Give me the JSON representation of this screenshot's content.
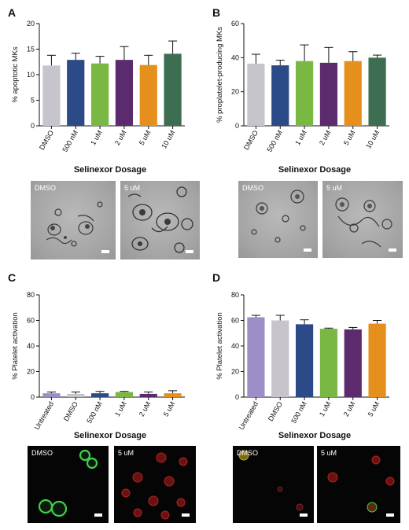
{
  "panels": {
    "A": {
      "letter": "A",
      "dosage_title": "Selinexor Dosage",
      "images": [
        {
          "label": "DMSO",
          "icon": "brightfield-micrograph"
        },
        {
          "label": "5 uM",
          "icon": "brightfield-micrograph"
        }
      ]
    },
    "B": {
      "letter": "B",
      "dosage_title": "Selinexor Dosage",
      "images": [
        {
          "label": "DMSO",
          "icon": "brightfield-micrograph"
        },
        {
          "label": "5 uM",
          "icon": "brightfield-micrograph"
        }
      ]
    },
    "C": {
      "letter": "C",
      "dosage_title": "Selinexor Dosage",
      "images": [
        {
          "label": "DMSO",
          "icon": "fluorescence-micrograph"
        },
        {
          "label": "5 uM",
          "icon": "fluorescence-micrograph"
        }
      ]
    },
    "D": {
      "letter": "D",
      "dosage_title": "Selinexor Dosage",
      "images": [
        {
          "label": "DMSO",
          "icon": "fluorescence-micrograph"
        },
        {
          "label": "5 uM",
          "icon": "fluorescence-micrograph"
        }
      ]
    }
  },
  "chart_data": [
    {
      "panel": "A",
      "type": "bar",
      "categories": [
        "DMSO",
        "500 nM",
        "1 uM",
        "2 uM",
        "5 uM",
        "10 uM"
      ],
      "values": [
        11.8,
        12.9,
        12.2,
        12.9,
        11.9,
        14.1
      ],
      "errors": [
        2.0,
        1.3,
        1.4,
        2.6,
        1.9,
        2.5
      ],
      "colors": [
        "#c7c4cc",
        "#2c4a87",
        "#79b843",
        "#5b2b6e",
        "#e58f1c",
        "#3d6e51"
      ],
      "ylabel": "% apoptotic MKs",
      "xlabel": "",
      "ylim": [
        0,
        20
      ],
      "yticks": [
        0,
        5,
        10,
        15,
        20
      ]
    },
    {
      "panel": "B",
      "type": "bar",
      "categories": [
        "DMSO",
        "500 nM",
        "1 uM",
        "2 uM",
        "5 uM",
        "10 uM"
      ],
      "values": [
        36.5,
        35.5,
        38.0,
        37.0,
        38.0,
        40.0
      ],
      "errors": [
        5.5,
        3.0,
        9.5,
        9.0,
        5.5,
        1.5
      ],
      "colors": [
        "#c7c4cc",
        "#2c4a87",
        "#79b843",
        "#5b2b6e",
        "#e58f1c",
        "#3d6e51"
      ],
      "ylabel": "% proplatelet-producing MKs",
      "xlabel": "",
      "ylim": [
        0,
        60
      ],
      "yticks": [
        0,
        20,
        40,
        60
      ]
    },
    {
      "panel": "C",
      "type": "bar",
      "categories": [
        "Untreated",
        "DMSO",
        "500 nM",
        "1 uM",
        "2 uM",
        "5 uM"
      ],
      "values": [
        3.0,
        2.5,
        3.0,
        4.0,
        2.5,
        3.0
      ],
      "errors": [
        1.0,
        1.5,
        1.5,
        0.5,
        1.5,
        2.0
      ],
      "colors": [
        "#9c8fc8",
        "#c7c4cc",
        "#2c4a87",
        "#79b843",
        "#5b2b6e",
        "#e58f1c"
      ],
      "ylabel": "% Platelet activation",
      "xlabel": "",
      "ylim": [
        0,
        80
      ],
      "yticks": [
        0,
        20,
        40,
        60,
        80
      ]
    },
    {
      "panel": "D",
      "type": "bar",
      "categories": [
        "Untreated",
        "DMSO",
        "500 nM",
        "1 uM",
        "2 uM",
        "5 uM"
      ],
      "values": [
        62.5,
        60.0,
        57.0,
        53.5,
        53.0,
        57.5
      ],
      "errors": [
        1.5,
        4.0,
        3.5,
        0.5,
        1.5,
        2.5
      ],
      "colors": [
        "#9c8fc8",
        "#c7c4cc",
        "#2c4a87",
        "#79b843",
        "#5b2b6e",
        "#e58f1c"
      ],
      "ylabel": "% Platelet activation",
      "xlabel": "",
      "ylim": [
        0,
        80
      ],
      "yticks": [
        0,
        20,
        40,
        60,
        80
      ]
    }
  ]
}
